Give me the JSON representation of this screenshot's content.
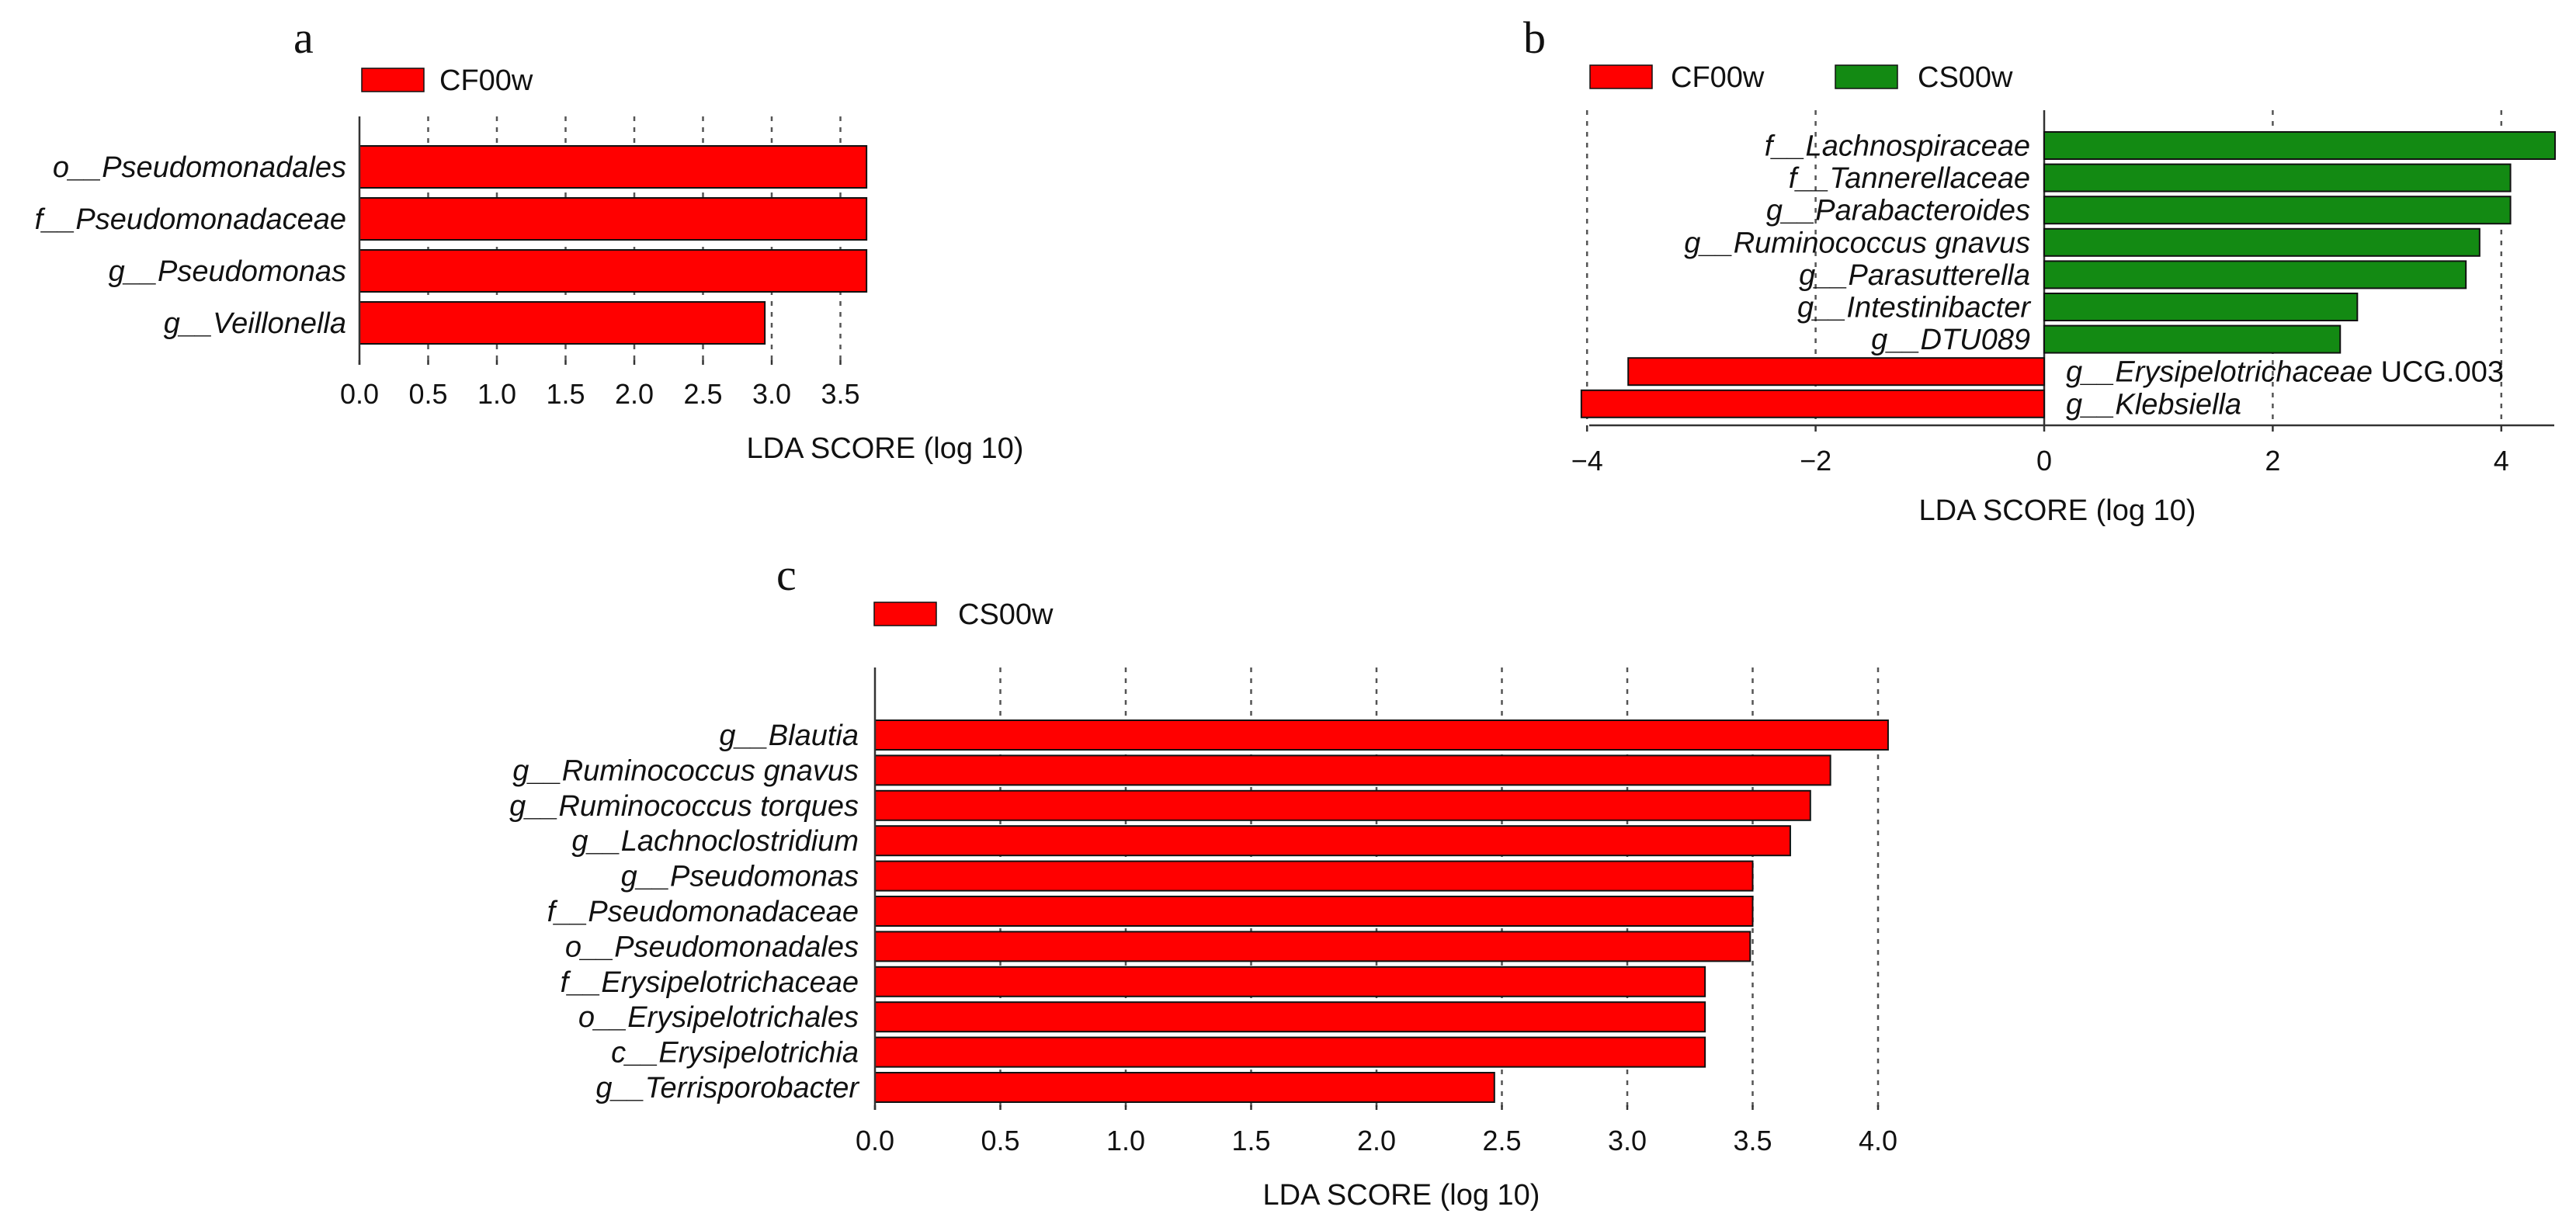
{
  "colors": {
    "red": "#ff0000",
    "green": "#138a13"
  },
  "chart_data": [
    {
      "panel": "a",
      "type": "bar",
      "orientation": "horizontal",
      "xlabel": "LDA SCORE (log 10)",
      "xlim": [
        0,
        3.7
      ],
      "xticks": [
        "0.0",
        "0.5",
        "1.0",
        "1.5",
        "2.0",
        "2.5",
        "3.0",
        "3.5"
      ],
      "legend": [
        {
          "label": "CF00w",
          "color": "#ff0000"
        }
      ],
      "categories": [
        {
          "label": "o__Pseudomonadales",
          "value": 3.69,
          "group": "CF00w"
        },
        {
          "label": "f__Pseudomonadaceae",
          "value": 3.69,
          "group": "CF00w"
        },
        {
          "label": "g__Pseudomonas",
          "value": 3.69,
          "group": "CF00w"
        },
        {
          "label": "g__Veillonella",
          "value": 2.95,
          "group": "CF00w"
        }
      ]
    },
    {
      "panel": "b",
      "type": "bar",
      "orientation": "horizontal",
      "xlabel": "LDA SCORE (log 10)",
      "xlim": [
        -4.1,
        4.5
      ],
      "xticks": [
        "−4",
        "−2",
        "0",
        "2",
        "4"
      ],
      "legend": [
        {
          "label": "CF00w",
          "color": "#ff0000"
        },
        {
          "label": "CS00w",
          "color": "#138a13"
        }
      ],
      "categories": [
        {
          "label": "f__Lachnospiraceae",
          "value": 4.47,
          "group": "CS00w"
        },
        {
          "label": "f__Tannerellaceae",
          "value": 4.08,
          "group": "CS00w"
        },
        {
          "label": "g__Parabacteroides",
          "value": 4.08,
          "group": "CS00w"
        },
        {
          "label": "g__Ruminococcus gnavus",
          "value": 3.81,
          "group": "CS00w"
        },
        {
          "label": "g__Parasutterella",
          "value": 3.69,
          "group": "CS00w"
        },
        {
          "label": "g__Intestinibacter",
          "value": 2.74,
          "group": "CS00w"
        },
        {
          "label": "g__DTU089",
          "value": 2.59,
          "group": "CS00w"
        },
        {
          "label": "g__Erysipelotrichaceae UCG.003",
          "value": -3.64,
          "group": "CF00w"
        },
        {
          "label": "g__Klebsiella",
          "value": -4.05,
          "group": "CF00w"
        }
      ]
    },
    {
      "panel": "c",
      "type": "bar",
      "orientation": "horizontal",
      "xlabel": "LDA SCORE (log 10)",
      "xlim": [
        0,
        4.1
      ],
      "xticks": [
        "0.0",
        "0.5",
        "1.0",
        "1.5",
        "2.0",
        "2.5",
        "3.0",
        "3.5",
        "4.0"
      ],
      "legend": [
        {
          "label": "CS00w",
          "color": "#ff0000"
        }
      ],
      "categories": [
        {
          "label": "g__Blautia",
          "value": 4.04,
          "group": "CS00w"
        },
        {
          "label": "g__Ruminococcus gnavus",
          "value": 3.81,
          "group": "CS00w"
        },
        {
          "label": "g__Ruminococcus torques",
          "value": 3.73,
          "group": "CS00w"
        },
        {
          "label": "g__Lachnoclostridium",
          "value": 3.65,
          "group": "CS00w"
        },
        {
          "label": "g__Pseudomonas",
          "value": 3.5,
          "group": "CS00w"
        },
        {
          "label": "f__Pseudomonadaceae",
          "value": 3.5,
          "group": "CS00w"
        },
        {
          "label": "o__Pseudomonadales",
          "value": 3.49,
          "group": "CS00w"
        },
        {
          "label": "f__Erysipelotrichaceae",
          "value": 3.31,
          "group": "CS00w"
        },
        {
          "label": "o__Erysipelotrichales",
          "value": 3.31,
          "group": "CS00w"
        },
        {
          "label": "c__Erysipelotrichia",
          "value": 3.31,
          "group": "CS00w"
        },
        {
          "label": "g__Terrisporobacter",
          "value": 2.47,
          "group": "CS00w"
        }
      ]
    }
  ]
}
